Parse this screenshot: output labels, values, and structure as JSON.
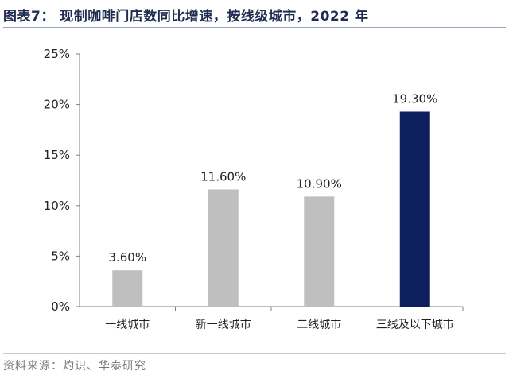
{
  "figure": {
    "title": "图表7：  现制咖啡门店数同比增速，按线级城市，2022 年",
    "source": "资料来源：灼识、华泰研究"
  },
  "chart_data": {
    "type": "bar",
    "categories": [
      "一线城市",
      "新一线城市",
      "二线城市",
      "三线及以下城市"
    ],
    "values": [
      3.6,
      11.6,
      10.9,
      19.3
    ],
    "data_labels": [
      "3.60%",
      "11.60%",
      "10.90%",
      "19.30%"
    ],
    "y_ticks": [
      "0%",
      "5%",
      "10%",
      "15%",
      "20%",
      "25%"
    ],
    "ylim": [
      0,
      25
    ],
    "grid": false,
    "legend": "none",
    "bar_colors": [
      "#bfbfbf",
      "#bfbfbf",
      "#bfbfbf",
      "#0d1f5c"
    ],
    "axis_color": "#808080"
  }
}
